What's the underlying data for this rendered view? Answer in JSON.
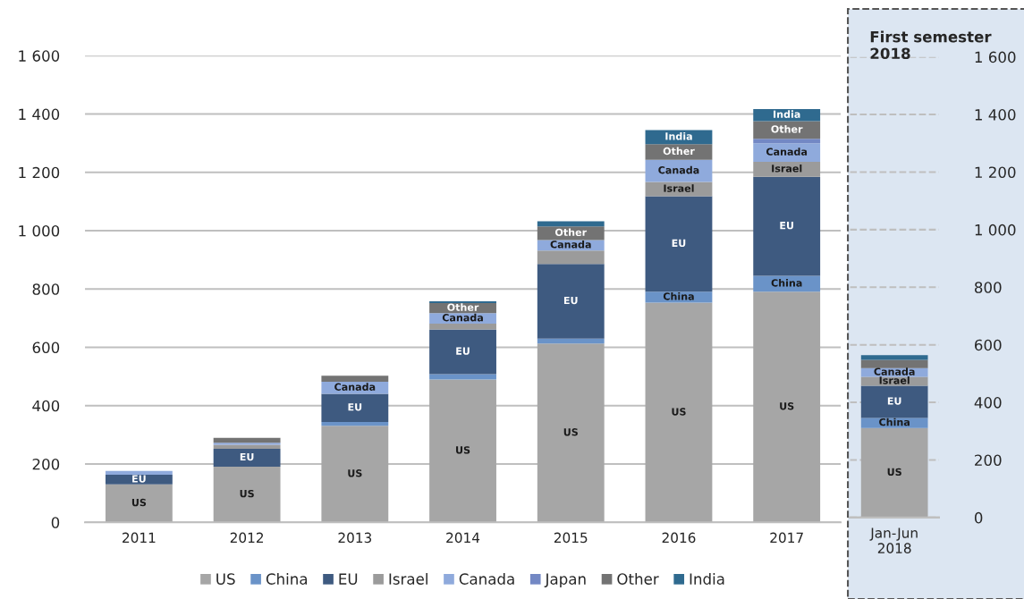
{
  "chart_data": [
    {
      "type": "bar",
      "stacked": true,
      "categories": [
        "2011",
        "2012",
        "2013",
        "2014",
        "2015",
        "2016",
        "2017"
      ],
      "series": [
        {
          "name": "US",
          "color": "#a6a6a6",
          "values": [
            130,
            191,
            331,
            490,
            613,
            753,
            791
          ],
          "value_labels": [
            "US",
            "US",
            "US",
            "US",
            "US",
            "US",
            "US"
          ]
        },
        {
          "name": "China",
          "color": "#6a93c8",
          "values": [
            0,
            0,
            13,
            18,
            17,
            38,
            54
          ],
          "value_labels": [
            null,
            null,
            null,
            null,
            null,
            "China",
            "China"
          ]
        },
        {
          "name": "EU",
          "color": "#3e5a80",
          "values": [
            33,
            61,
            97,
            153,
            256,
            327,
            340
          ],
          "value_labels": [
            "EU",
            "EU",
            "EU",
            "EU",
            "EU",
            "EU",
            "EU"
          ]
        },
        {
          "name": "Israel",
          "color": "#9b9b9b",
          "values": [
            0,
            14,
            0,
            20,
            46,
            49,
            51
          ],
          "value_labels": [
            null,
            null,
            null,
            null,
            null,
            "Israel",
            "Israel"
          ]
        },
        {
          "name": "Canada",
          "color": "#8faadc",
          "values": [
            13,
            7,
            41,
            36,
            36,
            76,
            64
          ],
          "value_labels": [
            null,
            null,
            "Canada",
            "Canada",
            "Canada",
            "Canada",
            "Canada"
          ]
        },
        {
          "name": "Japan",
          "color": "#7388c4",
          "values": [
            0,
            0,
            0,
            0,
            0,
            0,
            15
          ]
        },
        {
          "name": "Other",
          "color": "#737373",
          "values": [
            0,
            17,
            21,
            35,
            47,
            54,
            61
          ],
          "value_labels": [
            null,
            null,
            null,
            "Other",
            "Other",
            "Other",
            "Other"
          ]
        },
        {
          "name": "India",
          "color": "#2f6a8f",
          "values": [
            0,
            0,
            0,
            6,
            17,
            48,
            41
          ],
          "value_labels": [
            null,
            null,
            null,
            null,
            null,
            "India",
            "India"
          ]
        }
      ],
      "ylim": [
        0,
        1600
      ],
      "yticks": [
        {
          "value": 0,
          "label": "0"
        },
        {
          "value": 200,
          "label": "200"
        },
        {
          "value": 400,
          "label": "400"
        },
        {
          "value": 600,
          "label": "600"
        },
        {
          "value": 800,
          "label": "800"
        },
        {
          "value": 1000,
          "label": "1 000"
        },
        {
          "value": 1200,
          "label": "1 200"
        },
        {
          "value": 1400,
          "label": "1 400"
        },
        {
          "value": 1600,
          "label": "1 600"
        }
      ],
      "grid": "y",
      "legend": "bottom"
    },
    {
      "type": "bar",
      "stacked": true,
      "title": "First semester\n2018",
      "categories": [
        "Jan-Jun\n2018"
      ],
      "series": [
        {
          "color": "#a6a6a6",
          "values": [
            311
          ],
          "axis": "y2",
          "value_labels": [
            "US"
          ]
        },
        {
          "color": "#6a93c8",
          "values": [
            35
          ],
          "axis": "y2",
          "value_labels": [
            "China"
          ]
        },
        {
          "color": "#3e5a80",
          "values": [
            112
          ],
          "axis": "y2",
          "value_labels": [
            "EU"
          ]
        },
        {
          "color": "#9b9b9b",
          "values": [
            31
          ],
          "axis": "y2",
          "value_labels": [
            "Israel"
          ]
        },
        {
          "color": "#8faadc",
          "values": [
            30
          ],
          "axis": "y2",
          "value_labels": [
            "Canada"
          ]
        },
        {
          "color": "#737373",
          "values": [
            29
          ],
          "axis": "y2"
        },
        {
          "color": "#2f6a8f",
          "values": [
            16
          ],
          "axis": "y2"
        }
      ],
      "y2lim": [
        0,
        1600
      ],
      "y2ticks": [
        {
          "value": 0,
          "label": "0"
        },
        {
          "value": 200,
          "label": "200"
        },
        {
          "value": 400,
          "label": "400"
        },
        {
          "value": 600,
          "label": "600"
        },
        {
          "value": 800,
          "label": "800"
        },
        {
          "value": 1000,
          "label": "1 000"
        },
        {
          "value": 1200,
          "label": "1 200"
        },
        {
          "value": 1400,
          "label": "1 400"
        },
        {
          "value": 1600,
          "label": "1 600"
        }
      ],
      "grid": "y"
    }
  ]
}
